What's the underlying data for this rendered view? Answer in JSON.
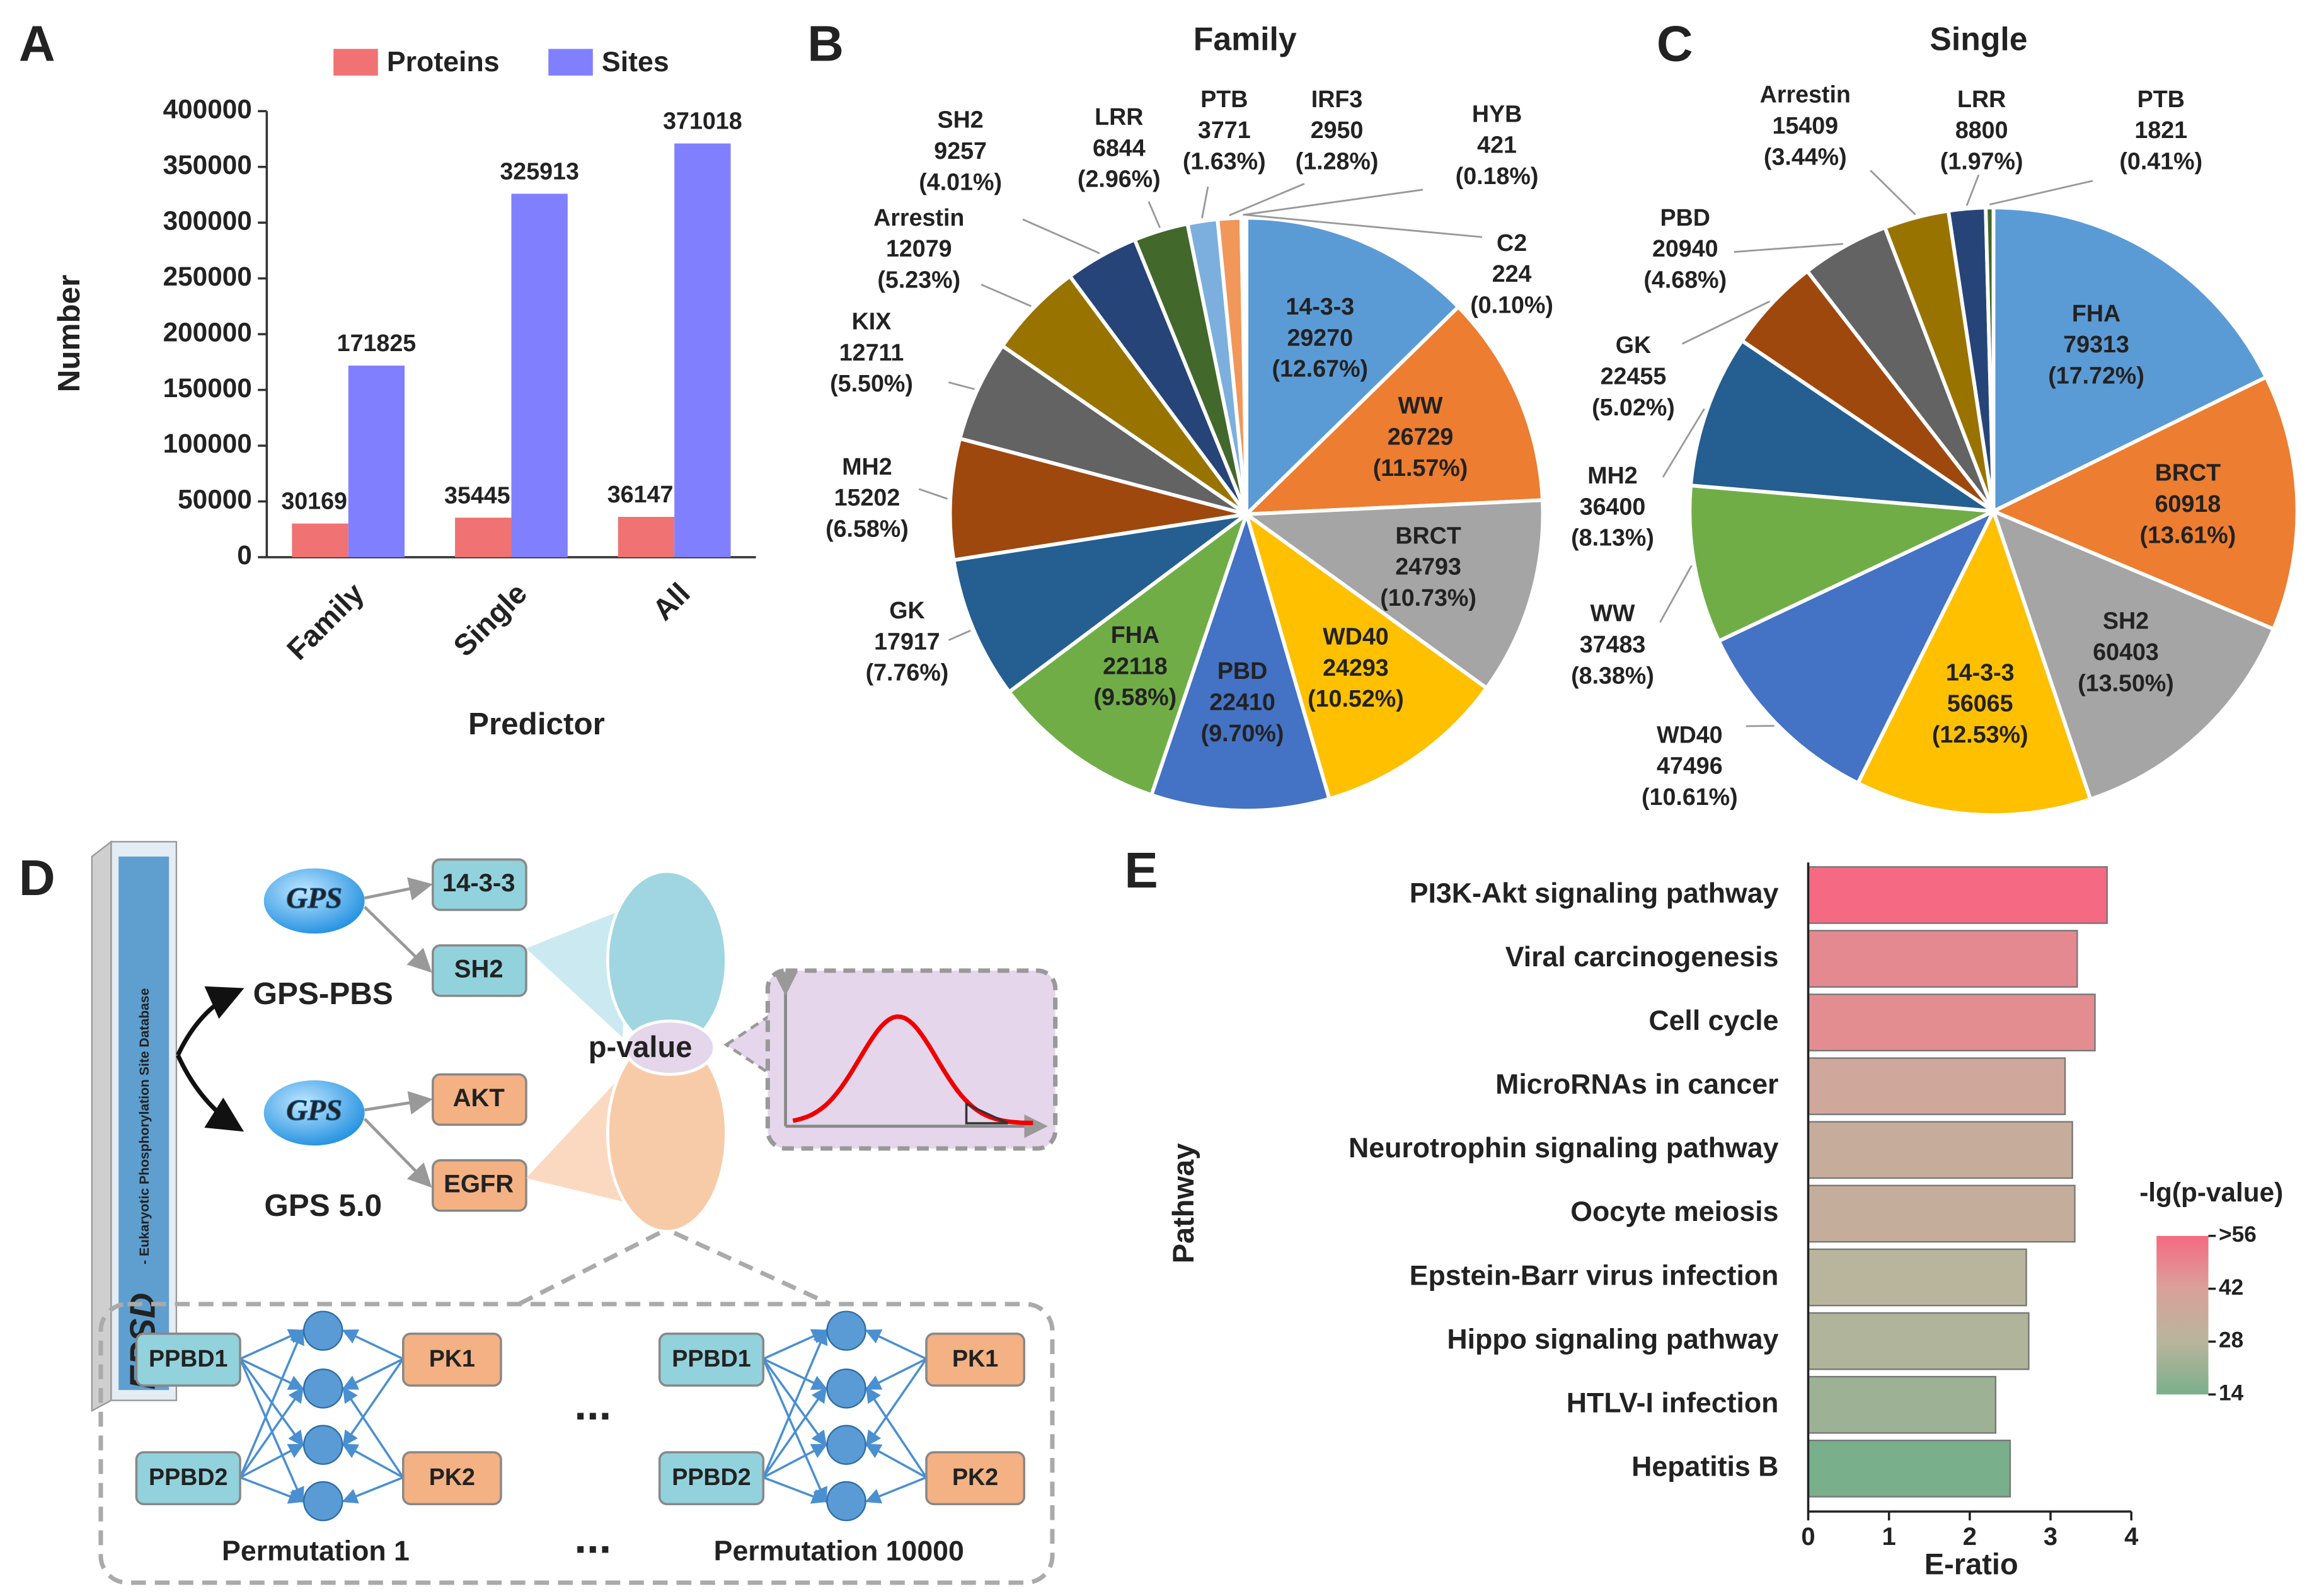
{
  "chart_data": [
    {
      "type": "bar",
      "panel": "A",
      "xlabel": "Predictor",
      "ylabel": "Number",
      "categories": [
        "Family",
        "Single",
        "All"
      ],
      "series": [
        {
          "name": "Proteins",
          "color": "#f07272",
          "values": [
            30169,
            35445,
            36147
          ]
        },
        {
          "name": "Sites",
          "color": "#8080ff",
          "values": [
            171825,
            325913,
            371018
          ]
        }
      ],
      "ylim": [
        0,
        400000
      ],
      "yticks": [
        0,
        50000,
        100000,
        150000,
        200000,
        250000,
        300000,
        350000,
        400000
      ],
      "grid": false,
      "legend": "top"
    },
    {
      "type": "pie",
      "panel": "B",
      "title": "Family",
      "categories": [
        "14-3-3",
        "WW",
        "BRCT",
        "WD40",
        "PBD",
        "FHA",
        "GK",
        "MH2",
        "KIX",
        "Arrestin",
        "SH2",
        "LRR",
        "PTB",
        "IRF3",
        "HYB",
        "C2"
      ],
      "values": [
        29270,
        26729,
        24793,
        24293,
        22410,
        22118,
        17917,
        15202,
        12711,
        12079,
        9257,
        6844,
        3771,
        2950,
        421,
        224
      ],
      "percents": [
        12.67,
        11.57,
        10.73,
        10.52,
        9.7,
        9.58,
        7.76,
        6.58,
        5.5,
        5.23,
        4.01,
        2.96,
        1.63,
        1.28,
        0.18,
        0.1
      ],
      "percent_labels": [
        "(12.67%)",
        "(11.57%)",
        "(10.73%)",
        "(10.52%)",
        "(9.70%)",
        "(9.58%)",
        "(7.76%)",
        "(6.58%)",
        "(5.50%)",
        "(5.23%)",
        "(4.01%)",
        "(2.96%)",
        "(1.63%)",
        "(1.28%)",
        "(0.18%)",
        "(0.10%)"
      ],
      "colors": [
        "#5b9bd5",
        "#ed7d31",
        "#a5a5a5",
        "#ffc000",
        "#4472c4",
        "#70ad47",
        "#255e91",
        "#9e480e",
        "#636363",
        "#997300",
        "#264478",
        "#43682b",
        "#7cafdd",
        "#f1975a",
        "#b7b7b7",
        "#ffcd33"
      ]
    },
    {
      "type": "pie",
      "panel": "C",
      "title": "Single",
      "categories": [
        "FHA",
        "BRCT",
        "SH2",
        "14-3-3",
        "WD40",
        "WW",
        "MH2",
        "GK",
        "PBD",
        "Arrestin",
        "LRR",
        "PTB"
      ],
      "values": [
        79313,
        60918,
        60403,
        56065,
        47496,
        37483,
        36400,
        22455,
        20940,
        15409,
        8800,
        1821
      ],
      "percents": [
        17.72,
        13.61,
        13.5,
        12.53,
        10.61,
        8.38,
        8.13,
        5.02,
        4.68,
        3.44,
        1.97,
        0.41
      ],
      "percent_labels": [
        "(17.72%)",
        "(13.61%)",
        "(13.50%)",
        "(12.53%)",
        "(10.61%)",
        "(8.38%)",
        "(8.13%)",
        "(5.02%)",
        "(4.68%)",
        "(3.44%)",
        "(1.97%)",
        "(0.41%)"
      ],
      "colors": [
        "#5b9bd5",
        "#ed7d31",
        "#a5a5a5",
        "#ffc000",
        "#4472c4",
        "#70ad47",
        "#255e91",
        "#9e480e",
        "#636363",
        "#997300",
        "#264478",
        "#43682b"
      ]
    },
    {
      "type": "barh",
      "panel": "E",
      "xlabel": "E-ratio",
      "ylabel": "Pathway",
      "categories": [
        "PI3K-Akt signaling pathway",
        "Viral carcinogenesis",
        "Cell cycle",
        "MicroRNAs in cancer",
        "Neurotrophin signaling pathway",
        "Oocyte meiosis",
        "Epstein-Barr virus infection",
        "Hippo signaling pathway",
        "HTLV-I infection",
        "Hepatitis B"
      ],
      "values": [
        3.7,
        3.33,
        3.55,
        3.18,
        3.27,
        3.3,
        2.7,
        2.73,
        2.32,
        2.5
      ],
      "color_values": [
        56,
        48,
        47,
        38,
        34,
        33,
        28,
        26,
        22,
        14
      ],
      "xlim": [
        0,
        4
      ],
      "xticks": [
        0,
        1,
        2,
        3,
        4
      ],
      "colorbar_title": "-lg(p-value)",
      "colorbar_lim": [
        14,
        56
      ],
      "colorbar_ticks": [
        {
          "value": 56,
          "label": ">56"
        },
        42,
        28,
        14
      ],
      "colorscale": [
        "#7aaf8c",
        "#b8b59c",
        "#d9a19a",
        "#f56a82"
      ]
    }
  ],
  "diagram": {
    "panel": "D",
    "database": {
      "name": "EPSD",
      "subtitle": "- Eukaryotic Phosphorylation Site Database"
    },
    "tools": [
      {
        "logo": "GPS",
        "name": "GPS-PBS",
        "outputs": [
          "14-3-3",
          "SH2"
        ]
      },
      {
        "logo": "GPS",
        "name": "GPS 5.0",
        "outputs": [
          "AKT",
          "EGFR"
        ]
      }
    ],
    "center": "p-value",
    "permutations": [
      {
        "inputs": [
          "PPBD1",
          "PPBD2"
        ],
        "outputs": [
          "PK1",
          "PK2"
        ],
        "label": "Permutation 1"
      },
      {
        "inputs": [
          "PPBD1",
          "PPBD2"
        ],
        "outputs": [
          "PK1",
          "PK2"
        ],
        "label": "Permutation 10000"
      }
    ],
    "ellipsis": "..."
  }
}
